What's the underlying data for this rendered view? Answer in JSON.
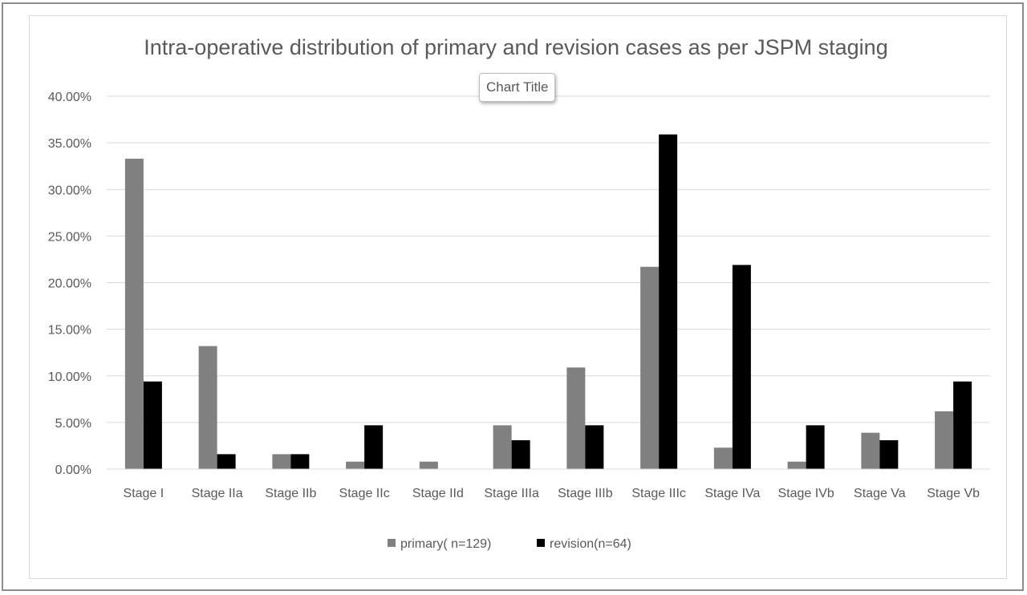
{
  "chart_data": {
    "type": "bar",
    "title": "Intra-operative distribution of primary and revision cases as per JSPM staging",
    "categories": [
      "Stage I",
      "Stage IIa",
      "Stage IIb",
      "Stage IIc",
      "Stage IId",
      "Stage IIIa",
      "Stage IIIb",
      "Stage IIIc",
      "Stage IVa",
      "Stage IVb",
      "Stage Va",
      "Stage Vb"
    ],
    "series": [
      {
        "name": "primary( n=129)",
        "color": "#808080",
        "values": [
          33.3,
          13.2,
          1.6,
          0.8,
          0.8,
          4.7,
          10.9,
          21.7,
          2.3,
          0.8,
          3.9,
          6.2
        ]
      },
      {
        "name": "revision(n=64)",
        "color": "#000000",
        "values": [
          9.4,
          1.6,
          1.6,
          4.7,
          0,
          3.1,
          4.7,
          35.9,
          21.9,
          4.7,
          3.1,
          9.4
        ]
      }
    ],
    "yticks": [
      "0.00%",
      "5.00%",
      "10.00%",
      "15.00%",
      "20.00%",
      "25.00%",
      "30.00%",
      "35.00%",
      "40.00%"
    ],
    "ylim": [
      0,
      40
    ],
    "ylabel": "",
    "xlabel": "",
    "grid": true,
    "legend_position": "bottom",
    "tooltip": "Chart Title"
  }
}
